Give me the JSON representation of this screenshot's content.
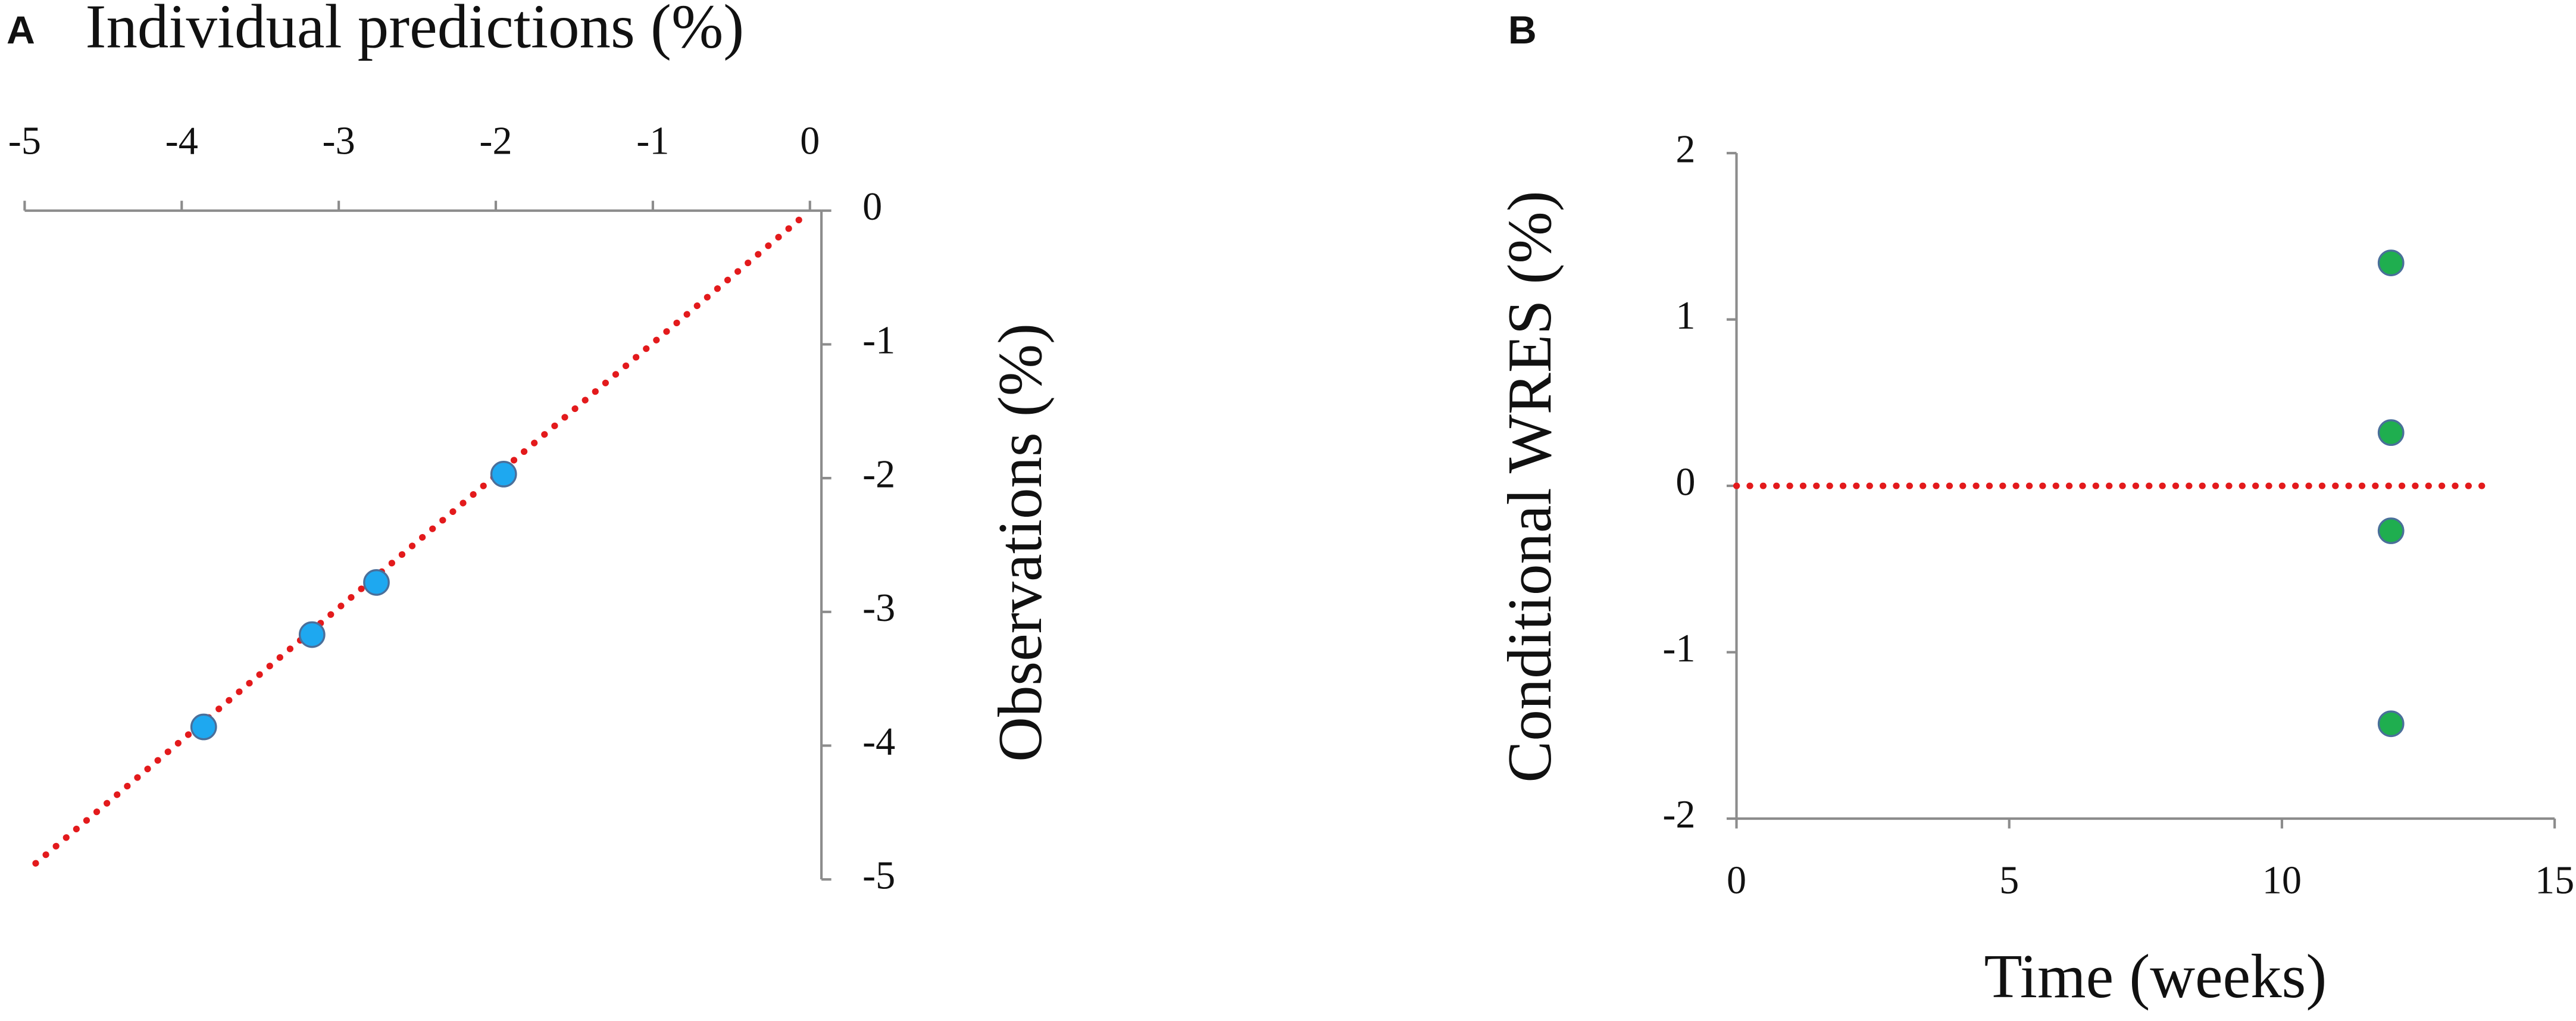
{
  "chart_data": [
    {
      "type": "scatter",
      "panel_label": "A",
      "x_label": "Individual predictions (%)",
      "y_label": "Observations (%)",
      "x": [
        -3.86,
        -3.17,
        -2.76,
        -1.95
      ],
      "values": [
        -3.86,
        -3.17,
        -2.78,
        -1.97
      ],
      "color": "#1ea8f0",
      "reference_line": {
        "x": [
          -4.93,
          -0.05
        ],
        "y": [
          -4.88,
          -0.05
        ],
        "color": "#e31a1c"
      },
      "xlim": [
        -5,
        0
      ],
      "ylim": [
        -5,
        0
      ],
      "xticks": [
        -5,
        -4,
        -3,
        -2,
        -1,
        0
      ],
      "yticks": [
        0,
        -1,
        -2,
        -3,
        -4,
        -5
      ]
    },
    {
      "type": "scatter",
      "panel_label": "B",
      "x_label": "Time (weeks)",
      "y_label": "Conditional WRES (%)",
      "x": [
        12,
        12,
        12,
        12
      ],
      "values": [
        1.34,
        0.32,
        -0.27,
        -1.43
      ],
      "color": "#1fae4f",
      "reference_line": {
        "x": [
          0,
          13.9
        ],
        "y": [
          0,
          0
        ],
        "color": "#e31a1c"
      },
      "xlim": [
        0,
        15
      ],
      "ylim": [
        -2,
        2
      ],
      "xticks": [
        0,
        5,
        10,
        15
      ],
      "yticks": [
        -2,
        -1,
        0,
        1,
        2
      ]
    }
  ]
}
